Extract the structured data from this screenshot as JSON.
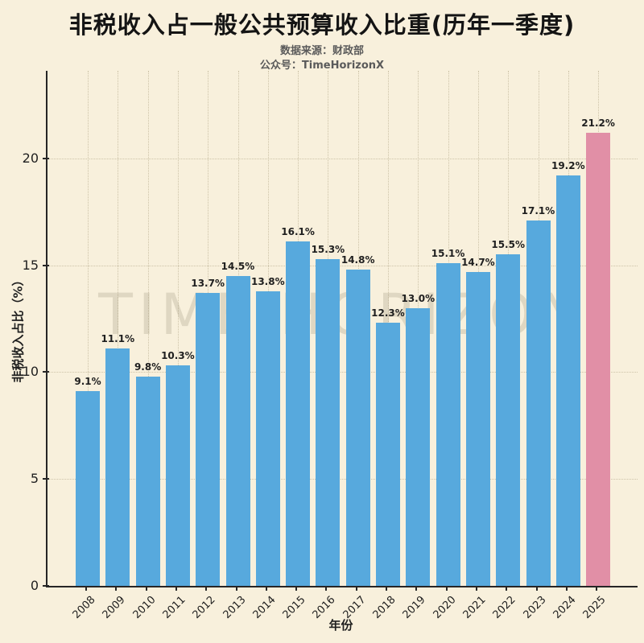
{
  "title": "非税收入占一般公共预算收入比重(历年一季度)",
  "subtitle_line1": "数据来源：财政部",
  "subtitle_line2": "公众号：TimeHorizonX",
  "watermark": "TIME HORIZON",
  "chart_data": {
    "type": "bar",
    "title": "非税收入占一般公共预算收入比重(历年一季度)",
    "xlabel": "年份",
    "ylabel": "非税收入占比（%）",
    "categories": [
      "2008",
      "2009",
      "2010",
      "2011",
      "2012",
      "2013",
      "2014",
      "2015",
      "2016",
      "2017",
      "2018",
      "2019",
      "2020",
      "2021",
      "2022",
      "2023",
      "2024",
      "2025"
    ],
    "values": [
      9.1,
      11.1,
      9.8,
      10.3,
      13.7,
      14.5,
      13.8,
      16.1,
      15.3,
      14.8,
      12.3,
      13.0,
      15.1,
      14.7,
      15.5,
      17.1,
      19.2,
      21.2
    ],
    "value_labels": [
      "9.1%",
      "11.1%",
      "9.8%",
      "10.3%",
      "13.7%",
      "14.5%",
      "13.8%",
      "16.1%",
      "15.3%",
      "14.8%",
      "12.3%",
      "13.0%",
      "15.1%",
      "14.7%",
      "15.5%",
      "17.1%",
      "19.2%",
      "21.2%"
    ],
    "highlight_index": 17,
    "yticks": [
      0,
      5,
      10,
      15,
      20
    ],
    "ylim": [
      0,
      24.1
    ],
    "grid": "dotted, horizontal and vertical, behind bars",
    "legend": "none",
    "colors": {
      "background": "#F8F0DC",
      "bar": "#57A9DD",
      "highlight_bar": "#E18FA6",
      "title_text": "#141414",
      "subtitle_text": "#5a5a5a",
      "tick_text": "#1f1f1f",
      "axis_spine": "#262626",
      "grid_line": "#AA9E7D",
      "watermark_text": "#7D7158"
    }
  }
}
